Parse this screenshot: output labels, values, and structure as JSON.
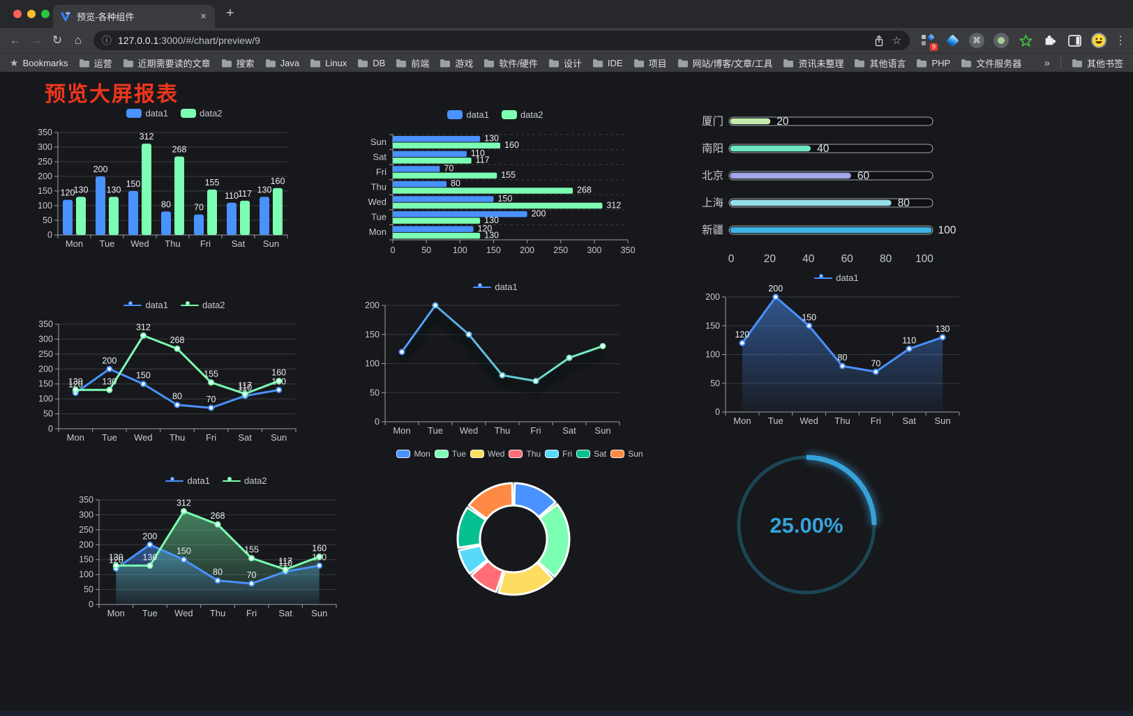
{
  "browser": {
    "tab_title": "预览-各种组件",
    "url_host": "127.0.0.1",
    "url_rest": ":3000/#/chart/preview/9",
    "extension_badge": "9",
    "bookmarks_label": "Bookmarks",
    "bookmark_folders": [
      "运营",
      "近期需要读的文章",
      "搜索",
      "Java",
      "Linux",
      "DB",
      "前端",
      "游戏",
      "软件/硬件",
      "设计",
      "IDE",
      "项目",
      "网站/博客/文章/工具",
      "资讯未整理",
      "其他语言",
      "PHP",
      "文件服务器"
    ],
    "other_bookmarks_label": "其他书签"
  },
  "icons": {
    "back": "←",
    "forward": "→",
    "reload": "↻",
    "home": "⌂",
    "info": "ⓘ",
    "star": "☆",
    "cmd": "⌘",
    "kebab": "⋮",
    "bookmarks_star": "★",
    "new_tab": "+",
    "close": "×",
    "overflow": "»"
  },
  "page": {
    "title": "预览大屏报表"
  },
  "theme": {
    "page_bg": "#17181c",
    "title_red": "#f0361b",
    "axis": "#9da0a8",
    "tick_text": "#c6c9ce",
    "grid": "#3a3b41",
    "data_label": "#eceef1",
    "legend_text": "#c6c9d0"
  },
  "chart_data": [
    {
      "type": "bar",
      "categories": [
        "Mon",
        "Tue",
        "Wed",
        "Thu",
        "Fri",
        "Sat",
        "Sun"
      ],
      "ylim": [
        0,
        350
      ],
      "yticks": [
        0,
        50,
        100,
        150,
        200,
        250,
        300,
        350
      ],
      "labels": true,
      "series": [
        {
          "name": "data1",
          "color": "#4992ff",
          "values": [
            120,
            200,
            150,
            80,
            70,
            110,
            130
          ]
        },
        {
          "name": "data2",
          "color": "#7cffb2",
          "values": [
            130,
            130,
            312,
            268,
            155,
            117,
            160
          ]
        }
      ]
    },
    {
      "type": "hbar",
      "categories": [
        "Mon",
        "Tue",
        "Wed",
        "Thu",
        "Fri",
        "Sat",
        "Sun"
      ],
      "xlim": [
        0,
        350
      ],
      "xticks": [
        0,
        50,
        100,
        150,
        200,
        250,
        300,
        350
      ],
      "labels": true,
      "series": [
        {
          "name": "data1",
          "color": "#4992ff",
          "values": [
            120,
            200,
            150,
            80,
            70,
            110,
            130
          ]
        },
        {
          "name": "data2",
          "color": "#7cffb2",
          "values": [
            130,
            130,
            312,
            268,
            155,
            117,
            160
          ]
        }
      ]
    },
    {
      "type": "progress",
      "max": 100,
      "xticks": [
        0,
        20,
        40,
        60,
        80,
        100
      ],
      "items": [
        {
          "label": "厦门",
          "value": 20,
          "color": "#c4ebad"
        },
        {
          "label": "南阳",
          "value": 40,
          "color": "#6be6c1"
        },
        {
          "label": "北京",
          "value": 60,
          "color": "#a0a7e6"
        },
        {
          "label": "上海",
          "value": 80,
          "color": "#96dee8"
        },
        {
          "label": "新疆",
          "value": 100,
          "color": "#3fb1e3"
        }
      ]
    },
    {
      "type": "line",
      "categories": [
        "Mon",
        "Tue",
        "Wed",
        "Thu",
        "Fri",
        "Sat",
        "Sun"
      ],
      "ylim": [
        0,
        350
      ],
      "yticks": [
        0,
        50,
        100,
        150,
        200,
        250,
        300,
        350
      ],
      "labels": true,
      "series": [
        {
          "name": "data1",
          "color": "#4992ff",
          "values": [
            120,
            200,
            150,
            80,
            70,
            110,
            130
          ]
        },
        {
          "name": "data2",
          "color": "#7cffb2",
          "values": [
            130,
            130,
            312,
            268,
            155,
            117,
            160
          ]
        }
      ]
    },
    {
      "type": "line",
      "categories": [
        "Mon",
        "Tue",
        "Wed",
        "Thu",
        "Fri",
        "Sat",
        "Sun"
      ],
      "ylim": [
        0,
        200
      ],
      "yticks": [
        0,
        50,
        100,
        150,
        200
      ],
      "labels": false,
      "shadow": true,
      "series": [
        {
          "name": "data1",
          "color": "#4992ff",
          "gradient": [
            "#4992ff",
            "#7cffb2"
          ],
          "values": [
            120,
            200,
            150,
            80,
            70,
            110,
            130
          ]
        }
      ]
    },
    {
      "type": "area",
      "categories": [
        "Mon",
        "Tue",
        "Wed",
        "Thu",
        "Fri",
        "Sat",
        "Sun"
      ],
      "ylim": [
        0,
        200
      ],
      "yticks": [
        0,
        50,
        100,
        150,
        200
      ],
      "labels": true,
      "series": [
        {
          "name": "data1",
          "color": "#4992ff",
          "values": [
            120,
            200,
            150,
            80,
            70,
            110,
            130
          ]
        }
      ]
    },
    {
      "type": "area",
      "categories": [
        "Mon",
        "Tue",
        "Wed",
        "Thu",
        "Fri",
        "Sat",
        "Sun"
      ],
      "ylim": [
        0,
        350
      ],
      "yticks": [
        0,
        50,
        100,
        150,
        200,
        250,
        300,
        350
      ],
      "labels": true,
      "series": [
        {
          "name": "data1",
          "color": "#4992ff",
          "values": [
            120,
            200,
            150,
            80,
            70,
            110,
            130
          ]
        },
        {
          "name": "data2",
          "color": "#7cffb2",
          "values": [
            130,
            130,
            312,
            268,
            155,
            117,
            160
          ]
        }
      ]
    },
    {
      "type": "pie",
      "items": [
        {
          "label": "Mon",
          "value": 120,
          "color": "#4992ff"
        },
        {
          "label": "Tue",
          "value": 200,
          "color": "#7cffb2"
        },
        {
          "label": "Wed",
          "value": 150,
          "color": "#fddd60"
        },
        {
          "label": "Thu",
          "value": 80,
          "color": "#ff6e76"
        },
        {
          "label": "Fri",
          "value": 70,
          "color": "#58d9f9"
        },
        {
          "label": "Sat",
          "value": 110,
          "color": "#05c091"
        },
        {
          "label": "Sun",
          "value": 130,
          "color": "#ff8a45"
        }
      ]
    },
    {
      "type": "gauge",
      "value_text": "25.00%",
      "percent": 25,
      "color": "#37a2da",
      "track_color": "#1c4654"
    }
  ]
}
